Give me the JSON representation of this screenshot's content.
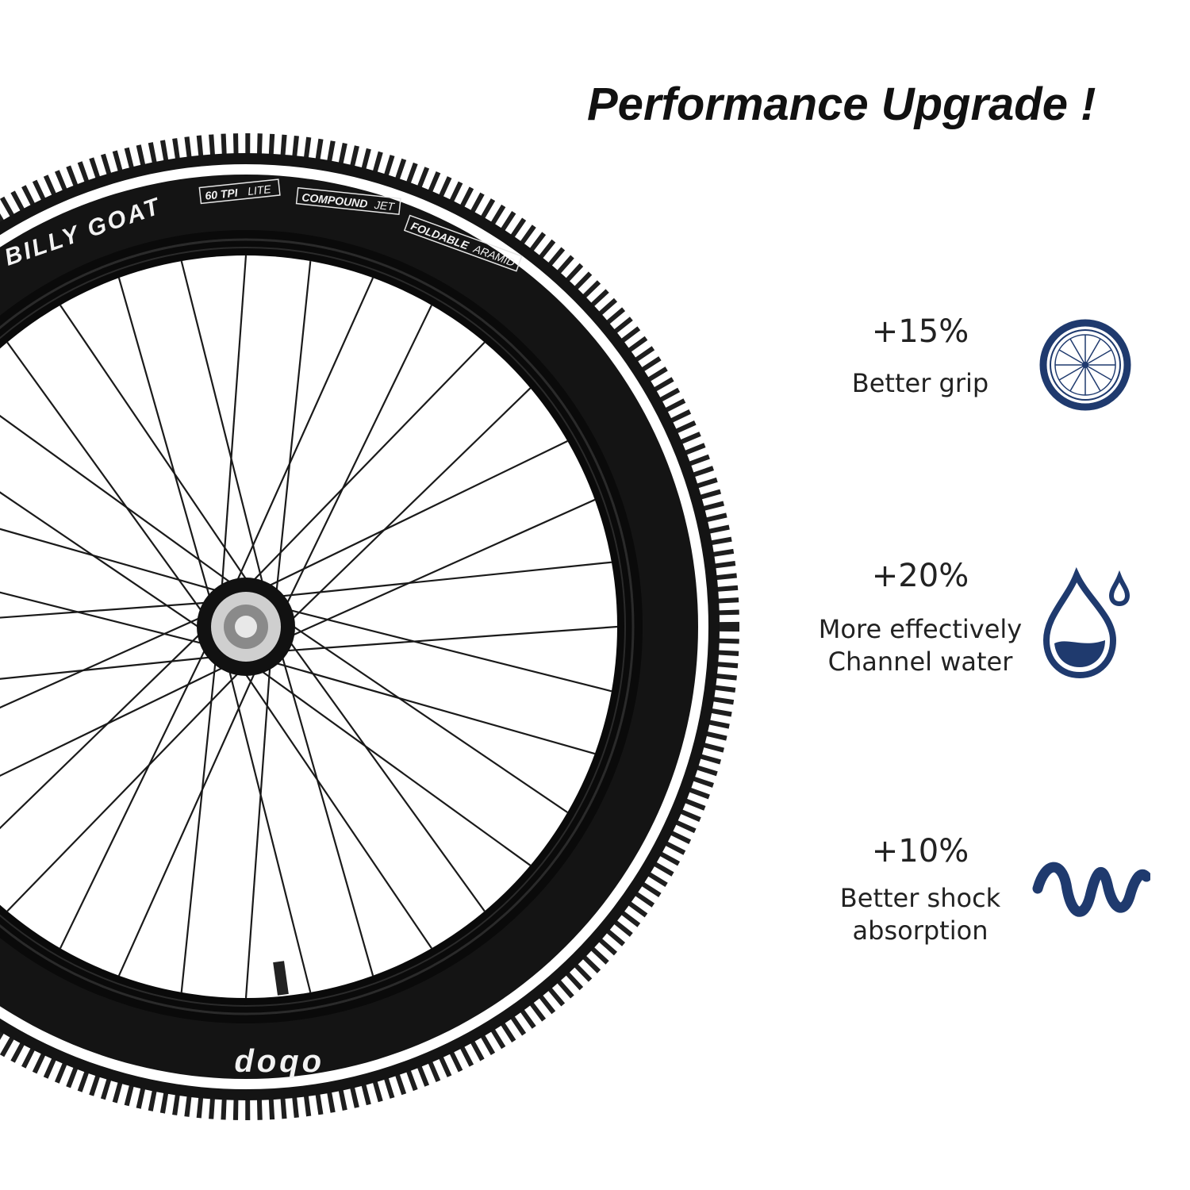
{
  "title": "Performance Upgrade !",
  "tire": {
    "brand": "BILLY GOAT",
    "tpi_label": "60 TPI",
    "tpi_variant": "LITE",
    "compound_label": "COMPOUND",
    "compound_variant": "JET",
    "foldable_label": "FOLDABLE",
    "foldable_variant": "ARAMID",
    "lower_sidewall_text": "obop"
  },
  "features": [
    {
      "percent": "+15%",
      "lines": [
        "Better grip"
      ],
      "icon": "wheel-icon"
    },
    {
      "percent": "+20%",
      "lines": [
        "More effectively",
        "Channel water"
      ],
      "icon": "water-drop-icon"
    },
    {
      "percent": "+10%",
      "lines": [
        "Better shock",
        "absorption"
      ],
      "icon": "shock-wave-icon"
    }
  ],
  "colors": {
    "icon": "#1f3a6e",
    "text": "#222222",
    "tire": "#141414"
  }
}
